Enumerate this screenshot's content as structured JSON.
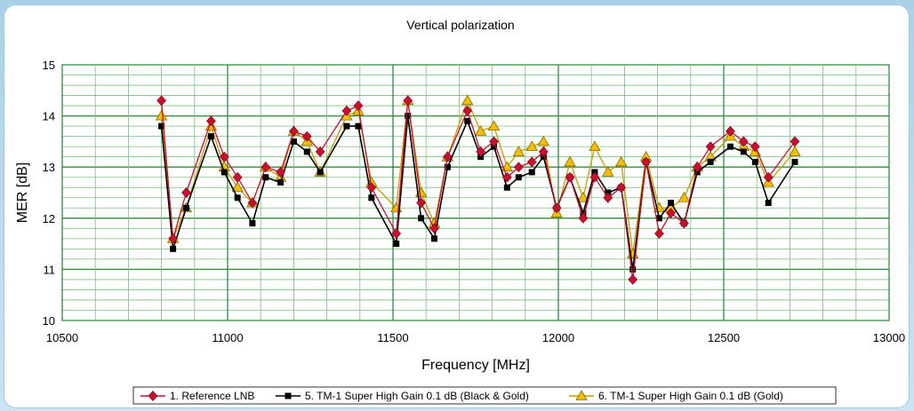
{
  "chart_data": {
    "type": "line",
    "title": "Vertical polarization",
    "xlabel": "Frequency [MHz]",
    "ylabel": "MER [dB]",
    "xlim": [
      10500,
      13000
    ],
    "ylim": [
      10,
      15
    ],
    "xticks": [
      10500,
      11000,
      11500,
      12000,
      12500,
      13000
    ],
    "yticks": [
      10,
      11,
      12,
      13,
      14,
      15
    ],
    "grid": "on",
    "legend_position": "bottom",
    "x": [
      10800,
      10835,
      10875,
      10950,
      10990,
      11030,
      11075,
      11115,
      11160,
      11200,
      11240,
      11280,
      11360,
      11395,
      11435,
      11510,
      11545,
      11585,
      11625,
      11665,
      11725,
      11765,
      11805,
      11845,
      11880,
      11920,
      11955,
      11995,
      12035,
      12075,
      12110,
      12150,
      12190,
      12225,
      12265,
      12305,
      12340,
      12380,
      12420,
      12460,
      12520,
      12560,
      12595,
      12635,
      12715
    ],
    "series": [
      {
        "name": "1. Reference LNB",
        "color": "#c8102e",
        "marker": "diamond",
        "values": [
          14.3,
          11.6,
          12.5,
          13.9,
          13.2,
          12.8,
          12.3,
          13.0,
          12.9,
          13.7,
          13.6,
          13.3,
          14.1,
          14.2,
          12.6,
          11.7,
          14.3,
          12.3,
          11.8,
          13.2,
          14.1,
          13.3,
          13.5,
          12.8,
          13.0,
          13.1,
          13.3,
          12.2,
          12.8,
          12.0,
          12.8,
          12.4,
          12.6,
          10.8,
          13.1,
          11.7,
          12.1,
          11.9,
          13.0,
          13.4,
          13.7,
          13.5,
          13.4,
          12.8,
          13.5
        ]
      },
      {
        "name": "5. TM-1 Super High Gain 0.1 dB (Black & Gold)",
        "color": "#000000",
        "marker": "square",
        "values": [
          13.8,
          11.4,
          12.2,
          13.6,
          12.9,
          12.4,
          11.9,
          12.8,
          12.7,
          13.5,
          13.3,
          12.9,
          13.8,
          13.8,
          12.4,
          11.5,
          14.0,
          12.0,
          11.6,
          13.0,
          13.9,
          13.2,
          13.4,
          12.6,
          12.8,
          12.9,
          13.2,
          12.2,
          12.8,
          12.1,
          12.9,
          12.5,
          12.6,
          11.0,
          13.1,
          12.0,
          12.3,
          11.9,
          12.9,
          13.1,
          13.4,
          13.3,
          13.1,
          12.3,
          13.1
        ]
      },
      {
        "name": "6. TM-1 Super High Gain 0.1 dB (Gold)",
        "color": "#f0c000",
        "marker": "triangle",
        "values": [
          14.0,
          11.6,
          12.2,
          13.8,
          13.0,
          12.6,
          12.3,
          13.0,
          12.8,
          13.7,
          13.5,
          12.9,
          14.0,
          14.1,
          12.7,
          12.2,
          14.3,
          12.5,
          11.9,
          13.2,
          14.3,
          13.7,
          13.8,
          13.0,
          13.3,
          13.4,
          13.5,
          12.1,
          13.1,
          12.4,
          13.4,
          12.9,
          13.1,
          11.3,
          13.2,
          12.2,
          12.2,
          12.4,
          13.0,
          13.2,
          13.6,
          13.4,
          13.3,
          12.7,
          13.3
        ]
      }
    ]
  }
}
